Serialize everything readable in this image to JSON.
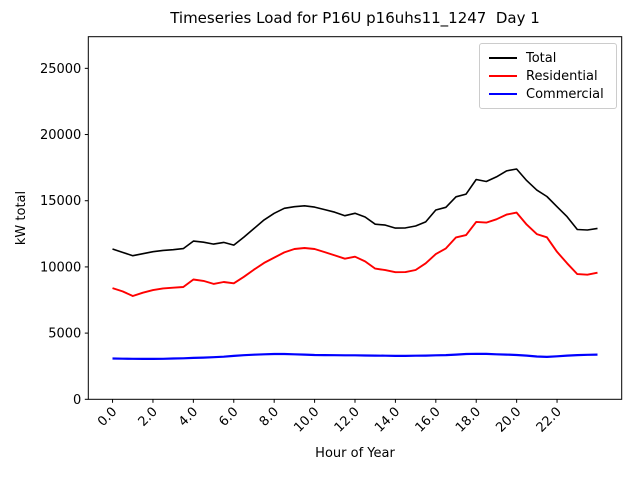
{
  "figure": {
    "title": "Timeseries Load for P16U p16uhs11_1247  Day 1",
    "xlabel": "Hour of Year",
    "ylabel": "kW total"
  },
  "legend": {
    "position": "upper right",
    "items": [
      {
        "label": "Total",
        "color": "#000000"
      },
      {
        "label": "Residential",
        "color": "#ff0000"
      },
      {
        "label": "Commercial",
        "color": "#0000ff"
      }
    ]
  },
  "chart_data": {
    "type": "line",
    "title": "Timeseries Load for P16U p16uhs11_1247  Day 1",
    "xlabel": "Hour of Year",
    "ylabel": "kW total",
    "grid": false,
    "legend_position": "upper right",
    "xlim": [
      -1.2,
      25.2
    ],
    "ylim": [
      0,
      27390
    ],
    "xticks": {
      "values": [
        0,
        2,
        4,
        6,
        8,
        10,
        12,
        14,
        16,
        18,
        20,
        22
      ],
      "labels": [
        "0.0",
        "2.0",
        "4.0",
        "6.0",
        "8.0",
        "10.0",
        "12.0",
        "14.0",
        "16.0",
        "18.0",
        "20.0",
        "22.0"
      ],
      "rotation": 45
    },
    "yticks": {
      "values": [
        0,
        5000,
        10000,
        15000,
        20000,
        25000
      ],
      "labels": [
        "0",
        "5000",
        "10000",
        "15000",
        "20000",
        "25000"
      ]
    },
    "x": [
      0,
      0.5,
      1,
      1.5,
      2,
      2.5,
      3,
      3.5,
      4,
      4.5,
      5,
      5.5,
      6,
      6.5,
      7,
      7.5,
      8,
      8.5,
      9,
      9.5,
      10,
      10.5,
      11,
      11.5,
      12,
      12.5,
      13,
      13.5,
      14,
      14.5,
      15,
      15.5,
      16,
      16.5,
      17,
      17.5,
      18,
      18.5,
      19,
      19.5,
      20,
      20.5,
      21,
      21.5,
      22,
      22.5,
      23,
      23.5,
      24
    ],
    "series": [
      {
        "name": "Total",
        "color": "#000000",
        "linewidth": 1.6,
        "values": [
          11350,
          11100,
          10850,
          11000,
          11150,
          11250,
          11300,
          11380,
          11950,
          11870,
          11720,
          11850,
          11650,
          12250,
          12900,
          13550,
          14050,
          14430,
          14550,
          14620,
          14520,
          14330,
          14130,
          13870,
          14050,
          13770,
          13230,
          13160,
          12930,
          12950,
          13090,
          13400,
          14300,
          14500,
          15300,
          15500,
          16600,
          16450,
          16800,
          17250,
          17400,
          16520,
          15800,
          15320,
          14550,
          13790,
          12830,
          12790,
          12910
        ]
      },
      {
        "name": "Residential",
        "color": "#ff0000",
        "linewidth": 1.9,
        "values": [
          8400,
          8150,
          7800,
          8050,
          8250,
          8380,
          8430,
          8480,
          9050,
          8940,
          8720,
          8860,
          8760,
          9250,
          9800,
          10300,
          10700,
          11100,
          11350,
          11430,
          11350,
          11120,
          10870,
          10620,
          10770,
          10420,
          9870,
          9760,
          9600,
          9610,
          9770,
          10270,
          10970,
          11400,
          12230,
          12400,
          13400,
          13350,
          13600,
          13950,
          14100,
          13200,
          12480,
          12240,
          11140,
          10270,
          9460,
          9410,
          9560
        ]
      },
      {
        "name": "Commercial",
        "color": "#0000ff",
        "linewidth": 2.2,
        "values": [
          3080,
          3070,
          3060,
          3050,
          3050,
          3060,
          3080,
          3100,
          3130,
          3150,
          3180,
          3220,
          3280,
          3330,
          3370,
          3400,
          3420,
          3420,
          3400,
          3380,
          3350,
          3340,
          3330,
          3320,
          3320,
          3310,
          3300,
          3290,
          3280,
          3280,
          3290,
          3300,
          3320,
          3340,
          3380,
          3420,
          3440,
          3430,
          3400,
          3380,
          3350,
          3300,
          3230,
          3200,
          3250,
          3300,
          3340,
          3360,
          3380
        ]
      }
    ]
  }
}
